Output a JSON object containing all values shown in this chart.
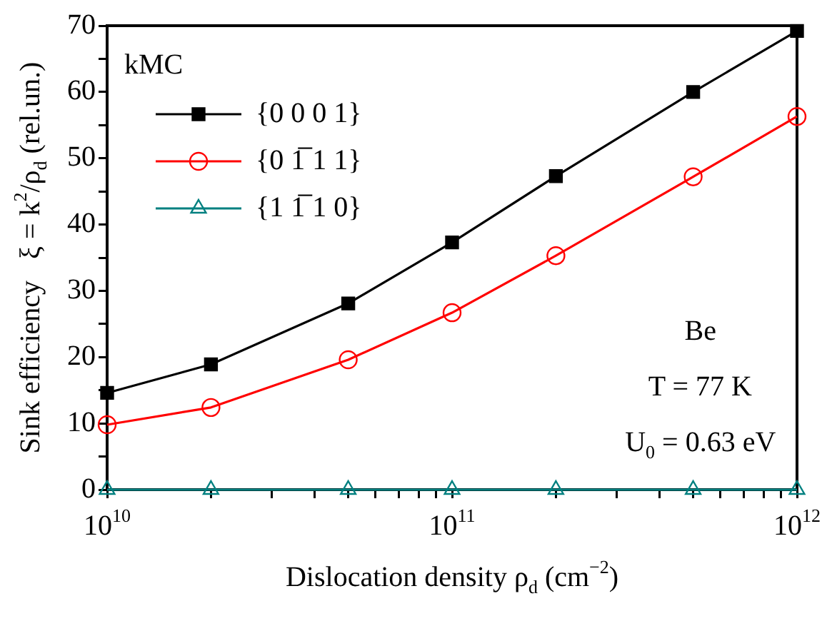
{
  "chart_data": {
    "type": "line",
    "xlabel": "Dislocation density ρ$_{d}$ (cm$^{−2}$)",
    "ylabel": "Sink efficiency   ξ = k$^{2}$/ρ$_{d}$ (rel.un.)",
    "legend_title": "kMC",
    "x": [
      10000000000.0,
      20000000000.0,
      50000000000.0,
      100000000000.0,
      200000000000.0,
      500000000000.0,
      1000000000000.0
    ],
    "series": [
      {
        "name": "{0 0 0 1}",
        "color": "#000000",
        "marker": "square",
        "values": [
          14.6,
          18.9,
          28.1,
          37.3,
          47.3,
          60.0,
          69.2
        ]
      },
      {
        "name": "{0 1̅ 1 1}",
        "color": "#ff0000",
        "marker": "circle",
        "values": [
          9.8,
          12.4,
          19.6,
          26.7,
          35.3,
          47.2,
          56.3
        ]
      },
      {
        "name": "{1 1̅ 1 0}",
        "color": "#008080",
        "marker": "triangle",
        "values": [
          0,
          0,
          0,
          0,
          0,
          0,
          0
        ]
      }
    ],
    "log": "x",
    "xlim": [
      10000000000.0,
      1000000000000.0
    ],
    "xticks": [
      {
        "value": 10000000000.0,
        "label": "10$^{10}$"
      },
      {
        "value": 20000000000.0,
        "label": null
      },
      {
        "value": 30000000000.0,
        "label": null
      },
      {
        "value": 40000000000.0,
        "label": null
      },
      {
        "value": 50000000000.0,
        "label": null
      },
      {
        "value": 60000000000.0,
        "label": null
      },
      {
        "value": 70000000000.0,
        "label": null
      },
      {
        "value": 80000000000.0,
        "label": null
      },
      {
        "value": 90000000000.0,
        "label": null
      },
      {
        "value": 100000000000.0,
        "label": "10$^{11}$"
      },
      {
        "value": 200000000000.0,
        "label": null
      },
      {
        "value": 300000000000.0,
        "label": null
      },
      {
        "value": 400000000000.0,
        "label": null
      },
      {
        "value": 500000000000.0,
        "label": null
      },
      {
        "value": 600000000000.0,
        "label": null
      },
      {
        "value": 700000000000.0,
        "label": null
      },
      {
        "value": 800000000000.0,
        "label": null
      },
      {
        "value": 900000000000.0,
        "label": null
      },
      {
        "value": 1000000000000.0,
        "label": "10$^{12}$"
      }
    ],
    "ylim": [
      0,
      70
    ],
    "yticks": [
      0,
      {
        "value": 5,
        "label": null
      },
      10,
      {
        "value": 15,
        "label": null
      },
      20,
      {
        "value": 25,
        "label": null
      },
      30,
      {
        "value": 35,
        "label": null
      },
      40,
      {
        "value": 45,
        "label": null
      },
      50,
      {
        "value": 55,
        "label": null
      },
      60,
      {
        "value": 65,
        "label": null
      },
      70
    ],
    "grid": false,
    "legend": "top left",
    "line_style": "solid",
    "annotations": [
      "Be",
      "T = 77 K",
      "U$_{0}$ = 0.63 eV"
    ]
  }
}
